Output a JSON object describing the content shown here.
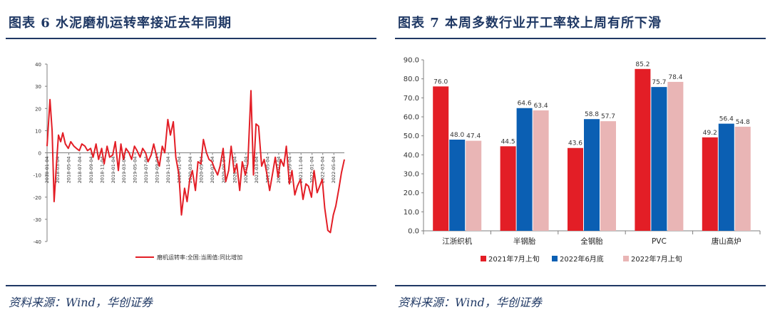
{
  "left_panel": {
    "title": "图表 6  水泥磨机运转率接近去年同期",
    "source": "资料来源：Wind，华创证券"
  },
  "right_panel": {
    "title": "图表 7  本周多数行业开工率较上周有所下滑",
    "source": "资料来源：Wind，华创证券"
  },
  "chart_data": [
    {
      "type": "line",
      "title": "",
      "xlabel": "",
      "ylabel": "",
      "ylim": [
        -40,
        40
      ],
      "yticks": [
        -40,
        -30,
        -20,
        -10,
        0,
        10,
        20,
        30,
        40
      ],
      "xtick_labels": [
        "2018-01-04",
        "2018-03-04",
        "2018-05-04",
        "2018-07-04",
        "2018-09-04",
        "2018-11-04",
        "2019-01-04",
        "2019-03-04",
        "2019-05-04",
        "2019-07-04",
        "2019-09-04",
        "2019-11-04",
        "2020-01-04",
        "2020-03-04",
        "2020-05-04",
        "2020-07-04",
        "2020-09-04",
        "2020-11-04",
        "2021-01-04",
        "2021-03-04",
        "2021-05-04",
        "2021-07-04",
        "2021-09-04",
        "2021-11-04",
        "2022-01-04",
        "2022-03-04",
        "2022-05-04"
      ],
      "legend_position": "bottom",
      "series": [
        {
          "name": "磨机运转率:全国:当周值:同比增加",
          "color": "#e31e26",
          "x": [
            "2018-01-04",
            "2018-01-20",
            "2018-02-01",
            "2018-02-12",
            "2018-02-25",
            "2018-03-08",
            "2018-03-20",
            "2018-04-01",
            "2018-04-15",
            "2018-05-01",
            "2018-05-15",
            "2018-06-01",
            "2018-06-15",
            "2018-07-01",
            "2018-07-15",
            "2018-08-01",
            "2018-08-15",
            "2018-09-01",
            "2018-09-15",
            "2018-10-01",
            "2018-10-15",
            "2018-11-01",
            "2018-11-15",
            "2018-12-01",
            "2018-12-15",
            "2019-01-01",
            "2019-01-15",
            "2019-02-01",
            "2019-02-15",
            "2019-03-01",
            "2019-03-15",
            "2019-04-01",
            "2019-04-15",
            "2019-05-01",
            "2019-05-15",
            "2019-06-01",
            "2019-06-15",
            "2019-07-01",
            "2019-07-15",
            "2019-08-01",
            "2019-08-15",
            "2019-09-01",
            "2019-09-15",
            "2019-10-01",
            "2019-10-15",
            "2019-11-01",
            "2019-11-15",
            "2019-12-01",
            "2019-12-15",
            "2020-01-01",
            "2020-01-15",
            "2020-02-01",
            "2020-02-15",
            "2020-03-01",
            "2020-03-15",
            "2020-04-01",
            "2020-04-15",
            "2020-05-01",
            "2020-05-15",
            "2020-06-01",
            "2020-06-15",
            "2020-07-01",
            "2020-07-15",
            "2020-08-01",
            "2020-08-15",
            "2020-09-01",
            "2020-09-15",
            "2020-10-01",
            "2020-10-15",
            "2020-11-01",
            "2020-11-15",
            "2020-12-01",
            "2020-12-15",
            "2021-01-01",
            "2021-01-15",
            "2021-02-01",
            "2021-02-15",
            "2021-03-01",
            "2021-03-15",
            "2021-04-01",
            "2021-04-15",
            "2021-05-01",
            "2021-05-15",
            "2021-06-01",
            "2021-06-15",
            "2021-07-01",
            "2021-07-15",
            "2021-08-01",
            "2021-08-15",
            "2021-09-01",
            "2021-09-15",
            "2021-10-01",
            "2021-10-15",
            "2021-11-01",
            "2021-11-15",
            "2021-12-01",
            "2021-12-15",
            "2022-01-01",
            "2022-01-15",
            "2022-02-01",
            "2022-02-15",
            "2022-03-01",
            "2022-03-15",
            "2022-04-01",
            "2022-04-15",
            "2022-05-01",
            "2022-05-15",
            "2022-06-01",
            "2022-06-15",
            "2022-07-01"
          ],
          "y": [
            3,
            24,
            10,
            -22,
            -5,
            8,
            5,
            9,
            4,
            2,
            5,
            3,
            2,
            1,
            4,
            3,
            1,
            2,
            -2,
            4,
            -3,
            2,
            -5,
            3,
            -2,
            -1,
            5,
            -8,
            4,
            -3,
            2,
            0,
            -3,
            3,
            1,
            -2,
            2,
            0,
            -4,
            -1,
            4,
            -2,
            -6,
            3,
            0,
            15,
            8,
            14,
            -2,
            -10,
            -28,
            -16,
            -22,
            -12,
            -8,
            -17,
            -4,
            -5,
            6,
            0,
            -3,
            -4,
            -7,
            -10,
            -6,
            2,
            -13,
            -8,
            3,
            -9,
            -5,
            -17,
            -4,
            -10,
            -5,
            28,
            -10,
            13,
            12,
            -6,
            -3,
            -10,
            -17,
            -9,
            -2,
            -11,
            -3,
            -6,
            3,
            -14,
            -8,
            -19,
            -15,
            -12,
            -21,
            -14,
            -15,
            -20,
            -8,
            -18,
            -15,
            -12,
            -25,
            -35,
            -36,
            -28,
            -24,
            -16,
            -9,
            -3
          ]
        }
      ]
    },
    {
      "type": "bar",
      "title": "",
      "xlabel": "",
      "ylabel": "",
      "ylim": [
        0,
        90
      ],
      "yticks": [
        0,
        10,
        20,
        30,
        40,
        50,
        60,
        70,
        80,
        90
      ],
      "categories": [
        "江浙织机",
        "半钢胎",
        "全钢胎",
        "PVC",
        "唐山高炉"
      ],
      "legend_position": "bottom",
      "series": [
        {
          "name": "2021年7月上旬",
          "color": "#e31e26",
          "values": [
            76.0,
            44.5,
            43.6,
            85.2,
            49.2
          ]
        },
        {
          "name": "2022年6月底",
          "color": "#0b5fb3",
          "values": [
            48.0,
            64.6,
            58.8,
            75.7,
            56.4
          ]
        },
        {
          "name": "2022年7月上旬",
          "color": "#e9b5b5",
          "values": [
            47.4,
            63.4,
            57.7,
            78.4,
            54.8
          ]
        }
      ]
    }
  ]
}
